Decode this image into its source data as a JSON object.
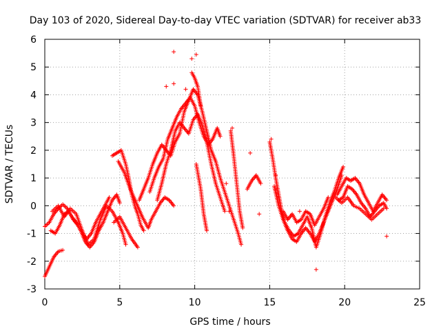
{
  "chart_data": {
    "type": "scatter",
    "title": "Day 103 of 2020, Sidereal Day-to-day VTEC variation (SDTVAR) for receiver ab33",
    "xlabel": "GPS time / hours",
    "ylabel": "SDTVAR / TECUs",
    "xlim": [
      0,
      25
    ],
    "ylim": [
      -3,
      6
    ],
    "xticks": [
      0,
      5,
      10,
      15,
      20,
      25
    ],
    "yticks": [
      -3,
      -2,
      -1,
      0,
      1,
      2,
      3,
      4,
      5,
      6
    ],
    "grid": true,
    "marker": "+",
    "series": [
      {
        "name": "SDTVAR",
        "color": "#ff0000",
        "tracks": [
          [
            [
              0.0,
              -2.55
            ],
            [
              0.3,
              -2.2
            ],
            [
              0.6,
              -1.85
            ],
            [
              0.9,
              -1.65
            ],
            [
              1.2,
              -1.6
            ]
          ],
          [
            [
              0.0,
              -0.75
            ],
            [
              0.3,
              -0.6
            ],
            [
              0.6,
              -0.3
            ],
            [
              0.9,
              -0.1
            ],
            [
              1.2,
              0.05
            ],
            [
              1.5,
              -0.1
            ],
            [
              1.8,
              -0.4
            ],
            [
              2.1,
              -0.6
            ],
            [
              2.4,
              -0.9
            ],
            [
              2.7,
              -1.3
            ],
            [
              3.0,
              -1.5
            ],
            [
              3.3,
              -1.3
            ],
            [
              3.6,
              -0.9
            ],
            [
              3.9,
              -0.6
            ],
            [
              4.2,
              -0.2
            ],
            [
              4.5,
              0.2
            ],
            [
              4.8,
              0.4
            ],
            [
              5.0,
              0.1
            ]
          ],
          [
            [
              0.4,
              -0.9
            ],
            [
              0.7,
              -1.0
            ],
            [
              1.0,
              -0.7
            ],
            [
              1.3,
              -0.3
            ],
            [
              1.6,
              -0.2
            ],
            [
              1.9,
              -0.5
            ],
            [
              2.2,
              -0.7
            ],
            [
              2.5,
              -1.0
            ],
            [
              2.8,
              -1.2
            ],
            [
              3.1,
              -1.0
            ],
            [
              3.4,
              -0.6
            ],
            [
              3.7,
              -0.3
            ],
            [
              4.0,
              0.0
            ],
            [
              4.3,
              0.3
            ]
          ],
          [
            [
              0.5,
              -0.2
            ],
            [
              0.9,
              0.0
            ],
            [
              1.3,
              -0.4
            ],
            [
              1.7,
              -0.1
            ],
            [
              2.1,
              -0.3
            ],
            [
              2.5,
              -0.9
            ],
            [
              2.9,
              -1.4
            ],
            [
              3.3,
              -1.2
            ],
            [
              3.7,
              -0.5
            ],
            [
              4.1,
              0.0
            ],
            [
              4.5,
              -0.2
            ],
            [
              4.9,
              -0.6
            ],
            [
              5.2,
              -1.0
            ],
            [
              5.4,
              -1.4
            ]
          ],
          [
            [
              4.6,
              -0.6
            ],
            [
              5.0,
              -0.4
            ],
            [
              5.4,
              -0.8
            ],
            [
              5.8,
              -1.2
            ],
            [
              6.2,
              -1.5
            ]
          ],
          [
            [
              4.5,
              1.8
            ],
            [
              4.8,
              1.9
            ],
            [
              5.1,
              2.0
            ],
            [
              5.4,
              1.5
            ],
            [
              5.6,
              1.0
            ],
            [
              5.8,
              0.4
            ],
            [
              6.0,
              0.0
            ],
            [
              6.2,
              -0.3
            ],
            [
              6.4,
              -0.7
            ],
            [
              6.6,
              -0.9
            ]
          ],
          [
            [
              4.9,
              1.6
            ],
            [
              5.3,
              1.2
            ],
            [
              5.7,
              0.6
            ],
            [
              6.1,
              0.1
            ],
            [
              6.5,
              -0.4
            ],
            [
              6.9,
              -0.8
            ],
            [
              7.1,
              -0.5
            ],
            [
              7.4,
              -0.2
            ],
            [
              7.7,
              0.1
            ],
            [
              8.0,
              0.3
            ],
            [
              8.3,
              0.2
            ],
            [
              8.6,
              0.0
            ]
          ],
          [
            [
              6.3,
              0.2
            ],
            [
              6.6,
              0.6
            ],
            [
              6.9,
              1.0
            ],
            [
              7.2,
              1.5
            ],
            [
              7.5,
              1.9
            ],
            [
              7.8,
              2.2
            ],
            [
              8.1,
              2.0
            ],
            [
              8.4,
              1.8
            ],
            [
              8.7,
              2.3
            ],
            [
              9.0,
              2.6
            ],
            [
              9.3,
              3.4
            ],
            [
              9.6,
              3.8
            ],
            [
              9.9,
              4.2
            ],
            [
              10.2,
              4.0
            ],
            [
              10.5,
              3.4
            ],
            [
              10.8,
              2.7
            ],
            [
              11.1,
              2.0
            ],
            [
              11.4,
              1.6
            ],
            [
              11.7,
              1.0
            ],
            [
              12.0,
              0.5
            ],
            [
              12.3,
              0.0
            ],
            [
              12.6,
              -0.5
            ],
            [
              12.9,
              -1.0
            ],
            [
              13.1,
              -1.4
            ]
          ],
          [
            [
              7.0,
              0.5
            ],
            [
              7.3,
              1.0
            ],
            [
              7.6,
              1.4
            ],
            [
              7.9,
              1.7
            ],
            [
              8.2,
              2.4
            ],
            [
              8.5,
              2.8
            ],
            [
              8.8,
              3.2
            ],
            [
              9.1,
              3.5
            ],
            [
              9.4,
              3.7
            ],
            [
              9.7,
              3.9
            ],
            [
              10.0,
              3.6
            ],
            [
              10.3,
              3.0
            ],
            [
              10.6,
              2.5
            ],
            [
              10.9,
              2.2
            ],
            [
              11.2,
              2.4
            ],
            [
              11.5,
              2.8
            ],
            [
              11.7,
              2.5
            ]
          ],
          [
            [
              7.5,
              0.2
            ],
            [
              7.8,
              0.8
            ],
            [
              8.1,
              1.5
            ],
            [
              8.4,
              2.0
            ],
            [
              8.7,
              2.7
            ],
            [
              9.0,
              3.0
            ],
            [
              9.3,
              2.8
            ],
            [
              9.6,
              2.6
            ],
            [
              9.9,
              3.1
            ],
            [
              10.2,
              3.3
            ],
            [
              10.5,
              2.9
            ],
            [
              10.8,
              2.3
            ],
            [
              11.1,
              1.5
            ],
            [
              11.4,
              0.8
            ],
            [
              11.7,
              0.3
            ],
            [
              12.0,
              -0.2
            ]
          ],
          [
            [
              9.8,
              4.8
            ],
            [
              10.0,
              4.6
            ],
            [
              10.2,
              4.3
            ],
            [
              10.4,
              3.6
            ]
          ],
          [
            [
              10.1,
              1.5
            ],
            [
              10.4,
              0.6
            ],
            [
              10.6,
              -0.3
            ],
            [
              10.8,
              -0.9
            ]
          ],
          [
            [
              12.4,
              2.7
            ],
            [
              12.6,
              1.8
            ],
            [
              12.8,
              0.8
            ],
            [
              13.0,
              -0.2
            ],
            [
              13.2,
              -0.8
            ]
          ],
          [
            [
              13.5,
              0.6
            ],
            [
              13.8,
              0.9
            ],
            [
              14.1,
              1.1
            ],
            [
              14.4,
              0.8
            ]
          ],
          [
            [
              15.0,
              2.3
            ],
            [
              15.2,
              1.7
            ],
            [
              15.4,
              1.0
            ],
            [
              15.6,
              0.4
            ],
            [
              15.8,
              -0.2
            ],
            [
              16.0,
              -0.6
            ],
            [
              16.3,
              -0.9
            ],
            [
              16.6,
              -1.1
            ],
            [
              16.9,
              -1.0
            ],
            [
              17.2,
              -0.7
            ],
            [
              17.5,
              -0.4
            ],
            [
              17.8,
              -0.8
            ],
            [
              18.1,
              -1.5
            ],
            [
              18.4,
              -1.0
            ],
            [
              18.7,
              -0.4
            ],
            [
              19.0,
              0.1
            ],
            [
              19.3,
              0.5
            ],
            [
              19.6,
              1.0
            ],
            [
              19.9,
              1.4
            ]
          ],
          [
            [
              15.3,
              0.7
            ],
            [
              15.6,
              0.0
            ],
            [
              15.9,
              -0.5
            ],
            [
              16.2,
              -0.9
            ],
            [
              16.5,
              -1.2
            ],
            [
              16.8,
              -1.3
            ],
            [
              17.1,
              -1.0
            ],
            [
              17.4,
              -0.8
            ],
            [
              17.7,
              -1.0
            ],
            [
              18.0,
              -1.3
            ],
            [
              18.3,
              -1.0
            ],
            [
              18.6,
              -0.6
            ],
            [
              18.9,
              -0.2
            ],
            [
              19.2,
              0.2
            ],
            [
              19.5,
              0.6
            ],
            [
              19.8,
              1.1
            ]
          ],
          [
            [
              15.9,
              -0.2
            ],
            [
              16.2,
              -0.5
            ],
            [
              16.5,
              -0.3
            ],
            [
              16.8,
              -0.6
            ],
            [
              17.1,
              -0.5
            ],
            [
              17.4,
              -0.2
            ],
            [
              17.7,
              -0.3
            ],
            [
              18.0,
              -0.7
            ],
            [
              18.3,
              -0.4
            ],
            [
              18.6,
              -0.1
            ],
            [
              18.9,
              0.3
            ]
          ],
          [
            [
              19.5,
              0.4
            ],
            [
              19.8,
              0.7
            ],
            [
              20.1,
              1.0
            ],
            [
              20.4,
              0.9
            ],
            [
              20.7,
              1.0
            ],
            [
              21.0,
              0.8
            ],
            [
              21.3,
              0.4
            ],
            [
              21.6,
              0.1
            ],
            [
              21.9,
              -0.2
            ],
            [
              22.2,
              0.1
            ],
            [
              22.5,
              0.4
            ],
            [
              22.8,
              0.2
            ]
          ],
          [
            [
              19.6,
              0.2
            ],
            [
              19.9,
              0.3
            ],
            [
              20.2,
              0.7
            ],
            [
              20.5,
              0.6
            ],
            [
              20.8,
              0.4
            ],
            [
              21.1,
              0.1
            ],
            [
              21.4,
              -0.1
            ],
            [
              21.7,
              -0.4
            ],
            [
              22.0,
              -0.2
            ],
            [
              22.3,
              0.0
            ],
            [
              22.6,
              0.1
            ],
            [
              22.8,
              -0.1
            ]
          ],
          [
            [
              19.4,
              0.3
            ],
            [
              19.8,
              0.1
            ],
            [
              20.2,
              0.3
            ],
            [
              20.6,
              0.0
            ],
            [
              21.0,
              -0.1
            ],
            [
              21.4,
              -0.3
            ],
            [
              21.8,
              -0.5
            ],
            [
              22.2,
              -0.3
            ],
            [
              22.6,
              -0.1
            ]
          ]
        ],
        "outliers": [
          [
            8.6,
            5.55
          ],
          [
            9.8,
            5.3
          ],
          [
            10.1,
            5.45
          ],
          [
            8.1,
            4.3
          ],
          [
            8.6,
            4.4
          ],
          [
            9.4,
            4.2
          ],
          [
            12.1,
            0.8
          ],
          [
            12.3,
            -0.2
          ],
          [
            13.7,
            1.9
          ],
          [
            14.3,
            -0.3
          ],
          [
            15.1,
            2.4
          ],
          [
            15.4,
            1.1
          ],
          [
            18.1,
            -2.3
          ],
          [
            17.0,
            -0.2
          ],
          [
            22.8,
            -1.1
          ],
          [
            12.5,
            2.8
          ]
        ]
      }
    ]
  }
}
